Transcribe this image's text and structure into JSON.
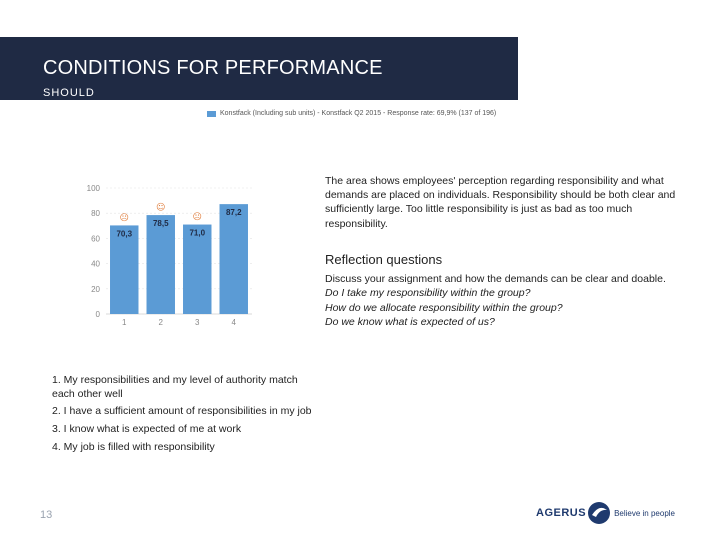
{
  "header": {
    "title": "CONDITIONS FOR PERFORMANCE",
    "subtitle": "SHOULD"
  },
  "legend": {
    "label": "Konstfack (Including sub units) - Konstfack Q2 2015 - Response rate: 69,9% (137 of 196)",
    "color": "#5b9bd5"
  },
  "chart_data": {
    "type": "bar",
    "categories": [
      "1",
      "2",
      "3",
      "4"
    ],
    "values": [
      70.3,
      78.5,
      71.0,
      87.2
    ],
    "value_labels": [
      "70,3",
      "78,5",
      "71,0",
      "87,2"
    ],
    "ylim": [
      0,
      100
    ],
    "yticks": [
      "0",
      "20",
      "40",
      "60",
      "80",
      "100"
    ],
    "markers": [
      "☹",
      "☺",
      "☹",
      ""
    ],
    "title": "",
    "xlabel": "",
    "ylabel": ""
  },
  "description": "The area shows employees' perception regarding responsibility and what demands are placed on individuals. Responsibility should be both clear and sufficiently large. Too little responsibility is just as bad as too much responsibility.",
  "reflection": {
    "title": "Reflection questions",
    "intro": "Discuss your assignment and how the demands can be clear and doable.",
    "questions": [
      "Do I take my responsibility within the group?",
      "How do we allocate responsibility within the group?",
      "Do we know what is expected of us?"
    ]
  },
  "items": [
    "1. My responsibilities and my level of authority match each other well",
    "2. I have a sufficient amount of responsibilities in my job",
    "3. I know what is expected of me at work",
    "4. My job is filled with responsibility"
  ],
  "page_number": "13",
  "logo": {
    "name": "AGERUS",
    "tagline": "Believe in people"
  },
  "colors": {
    "header_bg": "#1f2a44",
    "bar": "#5b9bd5",
    "marker": "#e07b39"
  }
}
